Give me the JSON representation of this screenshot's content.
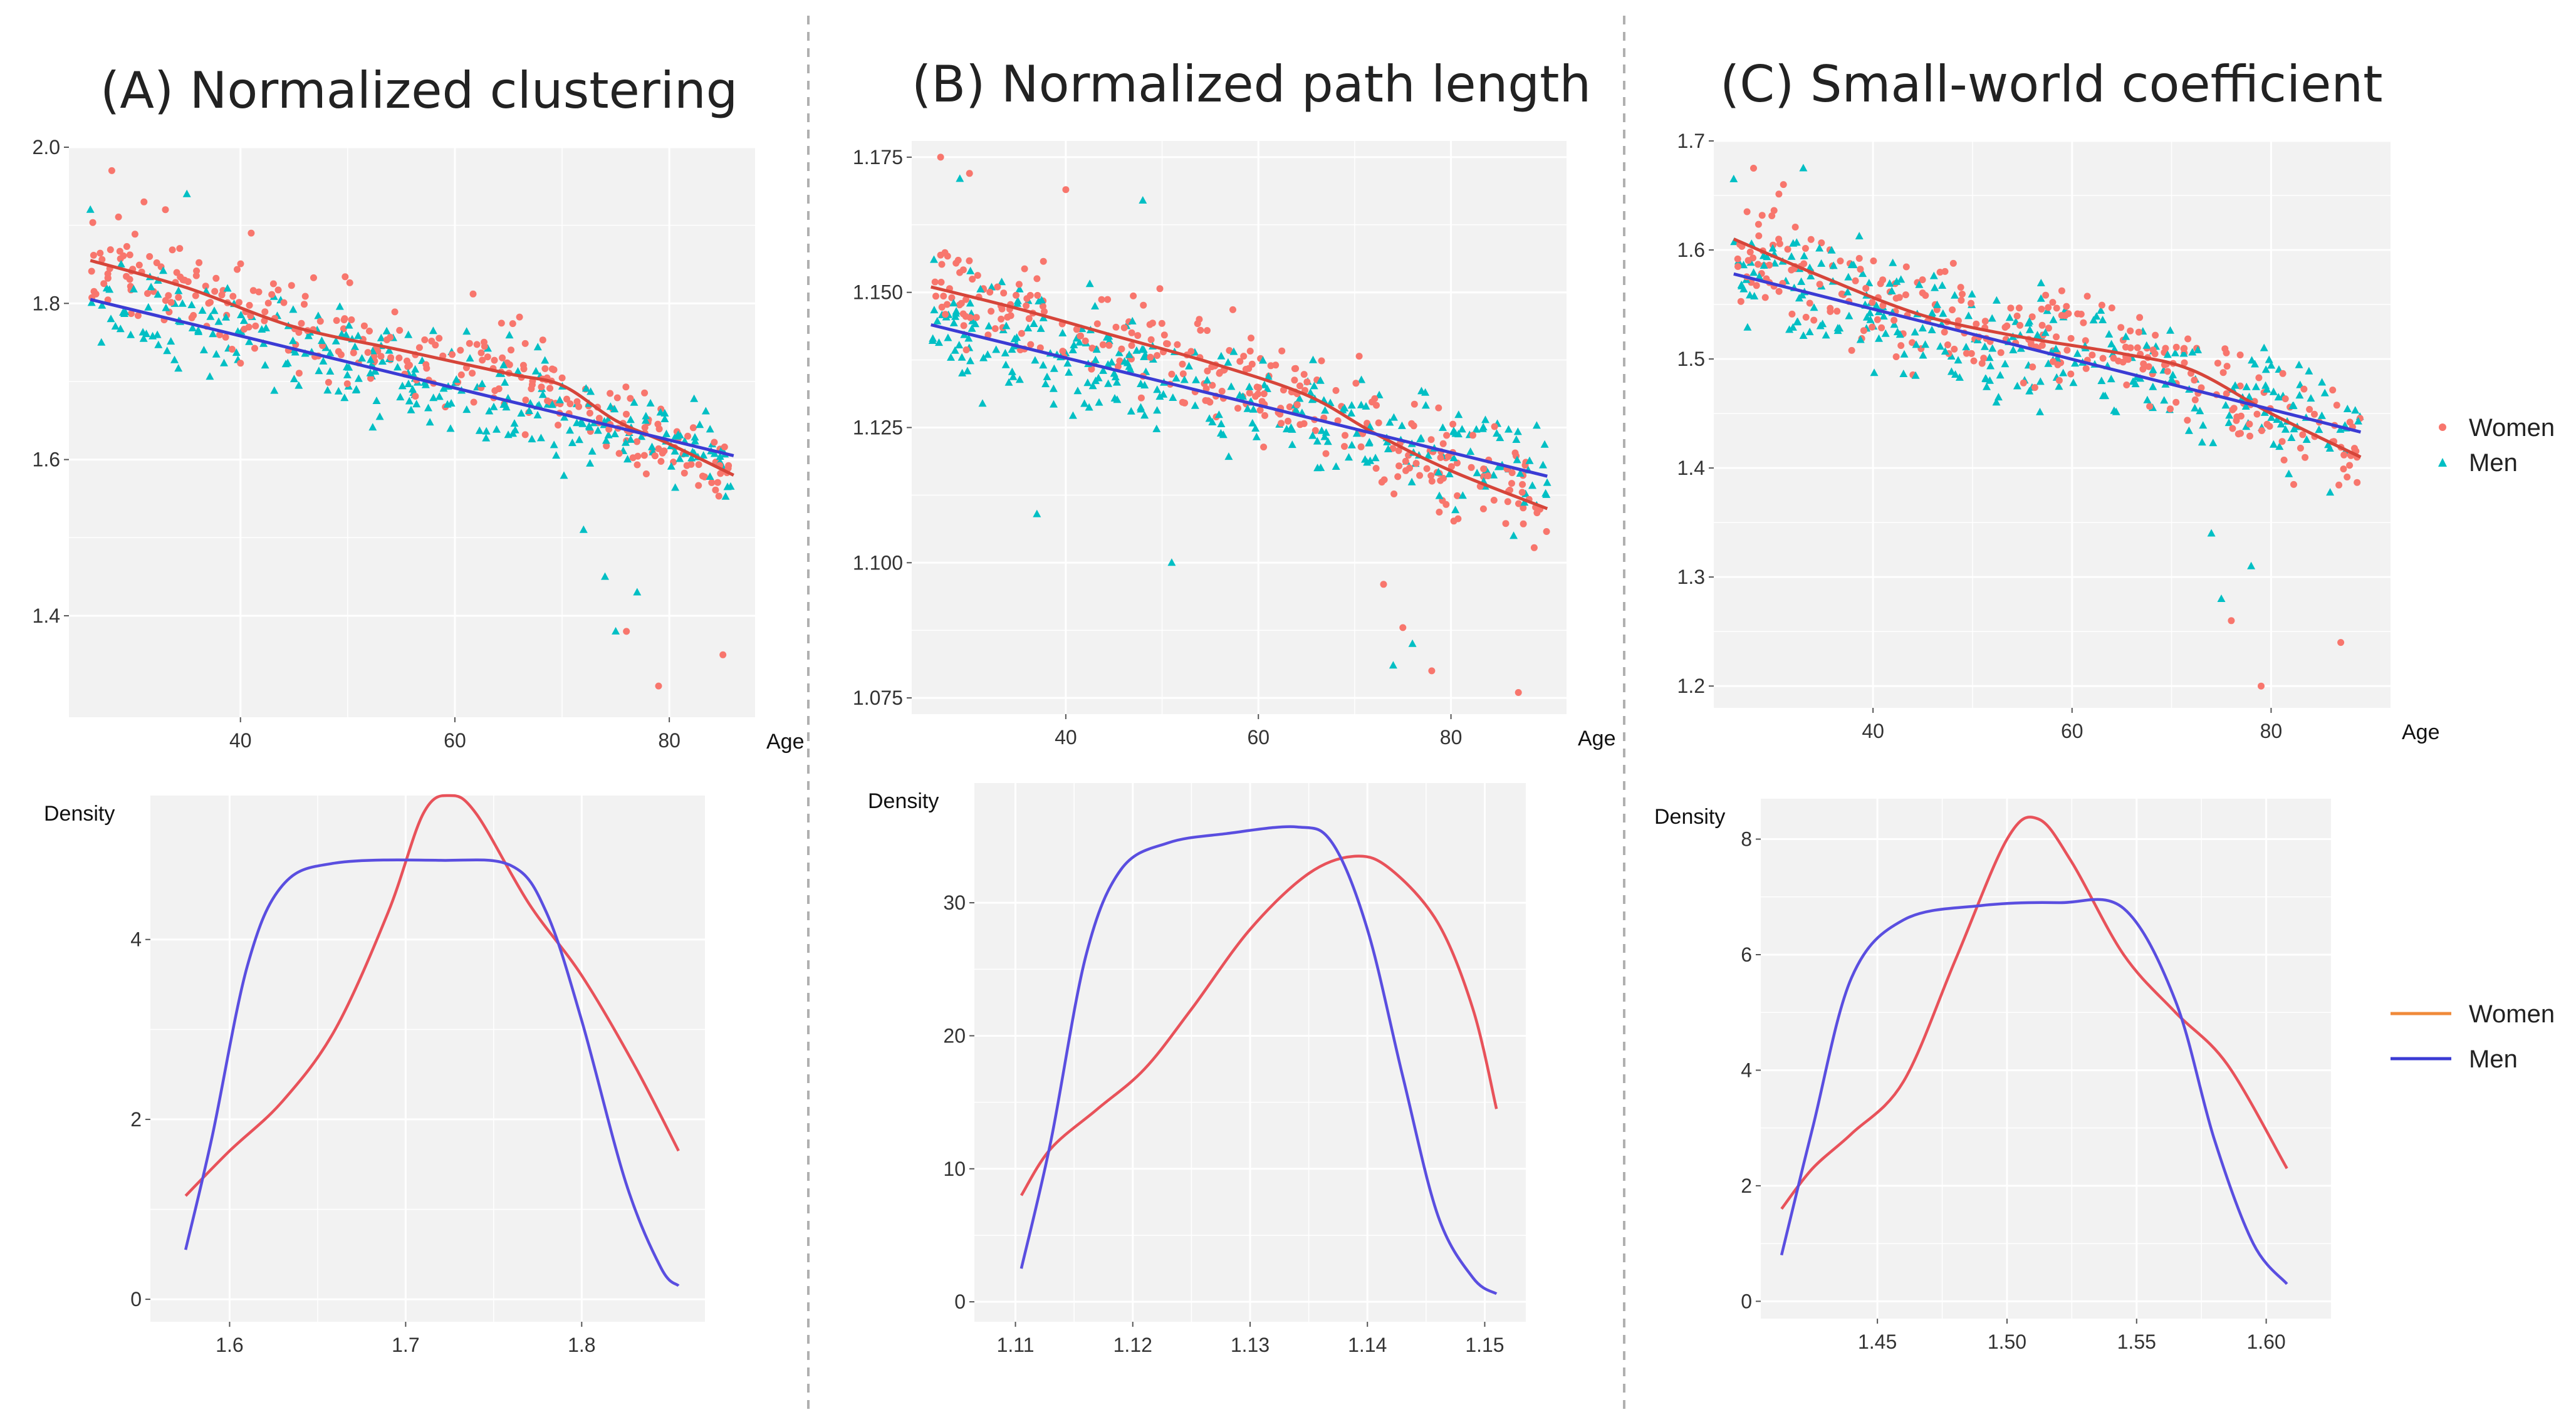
{
  "figure": {
    "separator_color": "#b0b0b0",
    "panel_background": "#f2f2f2",
    "grid_color": "#ffffff"
  },
  "colors": {
    "women_points": "#f8766d",
    "men_points": "#00bfc4",
    "women_fit": "#d6453a",
    "men_fit": "#3b3bd4",
    "women_density": "#e8525a",
    "men_density": "#5a4ee0",
    "women_legend_line": "#f08a3a"
  },
  "scatter_legend": {
    "items": [
      {
        "label": "Women",
        "shape": "circle"
      },
      {
        "label": "Men",
        "shape": "triangle"
      }
    ]
  },
  "density_legend": {
    "items": [
      {
        "label": "Women"
      },
      {
        "label": "Men"
      }
    ]
  },
  "chart_data": [
    {
      "id": "A",
      "type": "scatter",
      "title": "(A) Normalized clustering",
      "xlabel": "Age",
      "ylabel": "",
      "xlim": [
        24,
        88
      ],
      "ylim": [
        1.27,
        2.0
      ],
      "xticks": [
        40,
        60,
        80
      ],
      "yticks": [
        1.4,
        1.6,
        1.8,
        2.0
      ],
      "xtick_labels": [
        "40",
        "60",
        "80"
      ],
      "ytick_labels": [
        "1.4",
        "1.6",
        "1.8",
        "2.0"
      ],
      "points": {
        "n_per_group": 290,
        "seed": 11,
        "age_range": [
          26,
          86
        ],
        "women_sd": 0.055,
        "men_sd": 0.055,
        "women_outliers": [
          [
            28,
            1.97
          ],
          [
            31,
            1.93
          ],
          [
            33,
            1.92
          ],
          [
            41,
            1.89
          ],
          [
            76,
            1.38
          ],
          [
            79,
            1.31
          ],
          [
            85,
            1.35
          ]
        ],
        "men_outliers": [
          [
            26,
            1.92
          ],
          [
            35,
            1.94
          ],
          [
            72,
            1.51
          ],
          [
            74,
            1.45
          ],
          [
            75,
            1.38
          ],
          [
            77,
            1.43
          ]
        ]
      },
      "fits": {
        "women": [
          [
            26,
            1.855
          ],
          [
            35,
            1.82
          ],
          [
            45,
            1.77
          ],
          [
            55,
            1.74
          ],
          [
            65,
            1.71
          ],
          [
            70,
            1.695
          ],
          [
            75,
            1.65
          ],
          [
            80,
            1.62
          ],
          [
            86,
            1.58
          ]
        ],
        "men": [
          [
            26,
            1.805
          ],
          [
            86,
            1.605
          ]
        ]
      }
    },
    {
      "id": "B",
      "type": "scatter",
      "title": "(B) Normalized path length",
      "xlabel": "Age",
      "ylabel": "",
      "xlim": [
        24,
        92
      ],
      "ylim": [
        1.072,
        1.178
      ],
      "xticks": [
        40,
        60,
        80
      ],
      "yticks": [
        1.075,
        1.1,
        1.125,
        1.15,
        1.175
      ],
      "xtick_labels": [
        "40",
        "60",
        "80"
      ],
      "ytick_labels": [
        "1.075",
        "1.100",
        "1.125",
        "1.150",
        "1.175"
      ],
      "points": {
        "n_per_group": 290,
        "seed": 23,
        "age_range": [
          26,
          90
        ],
        "women_sd": 0.0085,
        "men_sd": 0.0085,
        "women_outliers": [
          [
            27,
            1.175
          ],
          [
            30,
            1.172
          ],
          [
            40,
            1.169
          ],
          [
            73,
            1.096
          ],
          [
            75,
            1.088
          ],
          [
            78,
            1.08
          ],
          [
            87,
            1.076
          ]
        ],
        "men_outliers": [
          [
            29,
            1.171
          ],
          [
            37,
            1.109
          ],
          [
            48,
            1.167
          ],
          [
            51,
            1.1
          ],
          [
            74,
            1.081
          ],
          [
            76,
            1.085
          ]
        ]
      },
      "fits": {
        "women": [
          [
            26,
            1.151
          ],
          [
            35,
            1.147
          ],
          [
            45,
            1.142
          ],
          [
            55,
            1.137
          ],
          [
            65,
            1.131
          ],
          [
            72,
            1.124
          ],
          [
            80,
            1.117
          ],
          [
            90,
            1.11
          ]
        ],
        "men": [
          [
            26,
            1.144
          ],
          [
            90,
            1.116
          ]
        ]
      }
    },
    {
      "id": "C",
      "type": "scatter",
      "title": "(C) Small-world coefficient",
      "xlabel": "Age",
      "ylabel": "",
      "xlim": [
        24,
        92
      ],
      "ylim": [
        1.18,
        1.7
      ],
      "xticks": [
        40,
        60,
        80
      ],
      "yticks": [
        1.2,
        1.3,
        1.4,
        1.5,
        1.6,
        1.7
      ],
      "xtick_labels": [
        "40",
        "60",
        "80"
      ],
      "ytick_labels": [
        "1.2",
        "1.3",
        "1.4",
        "1.5",
        "1.6",
        "1.7"
      ],
      "points": {
        "n_per_group": 290,
        "seed": 37,
        "age_range": [
          26,
          89
        ],
        "women_sd": 0.045,
        "men_sd": 0.045,
        "women_outliers": [
          [
            28,
            1.675
          ],
          [
            31,
            1.66
          ],
          [
            76,
            1.26
          ],
          [
            79,
            1.2
          ],
          [
            87,
            1.24
          ]
        ],
        "men_outliers": [
          [
            26,
            1.665
          ],
          [
            33,
            1.675
          ],
          [
            74,
            1.34
          ],
          [
            75,
            1.28
          ],
          [
            78,
            1.31
          ]
        ]
      },
      "fits": {
        "women": [
          [
            26,
            1.61
          ],
          [
            35,
            1.575
          ],
          [
            45,
            1.54
          ],
          [
            55,
            1.52
          ],
          [
            65,
            1.505
          ],
          [
            72,
            1.49
          ],
          [
            80,
            1.45
          ],
          [
            89,
            1.41
          ]
        ],
        "men": [
          [
            26,
            1.578
          ],
          [
            89,
            1.433
          ]
        ]
      }
    },
    {
      "id": "A-density",
      "type": "line",
      "title": "",
      "xlabel": "",
      "ylabel": "Density",
      "xlim": [
        1.555,
        1.87
      ],
      "ylim": [
        -0.25,
        5.6
      ],
      "xticks": [
        1.6,
        1.7,
        1.8
      ],
      "yticks": [
        0,
        2,
        4
      ],
      "xtick_labels": [
        "1.6",
        "1.7",
        "1.8"
      ],
      "ytick_labels": [
        "0",
        "2",
        "4"
      ],
      "series": [
        {
          "name": "Women",
          "points": [
            [
              1.575,
              1.15
            ],
            [
              1.6,
              1.65
            ],
            [
              1.63,
              2.2
            ],
            [
              1.66,
              3.0
            ],
            [
              1.69,
              4.3
            ],
            [
              1.71,
              5.4
            ],
            [
              1.725,
              5.6
            ],
            [
              1.74,
              5.4
            ],
            [
              1.77,
              4.4
            ],
            [
              1.8,
              3.6
            ],
            [
              1.83,
              2.6
            ],
            [
              1.855,
              1.65
            ]
          ]
        },
        {
          "name": "Men",
          "points": [
            [
              1.575,
              0.55
            ],
            [
              1.59,
              1.8
            ],
            [
              1.61,
              3.7
            ],
            [
              1.63,
              4.6
            ],
            [
              1.66,
              4.85
            ],
            [
              1.72,
              4.88
            ],
            [
              1.76,
              4.82
            ],
            [
              1.78,
              4.3
            ],
            [
              1.8,
              3.1
            ],
            [
              1.825,
              1.3
            ],
            [
              1.845,
              0.35
            ],
            [
              1.855,
              0.15
            ]
          ]
        }
      ]
    },
    {
      "id": "B-density",
      "type": "line",
      "title": "",
      "xlabel": "",
      "ylabel": "Density",
      "xlim": [
        1.1065,
        1.1535
      ],
      "ylim": [
        -1.5,
        39
      ],
      "xticks": [
        1.11,
        1.12,
        1.13,
        1.14,
        1.15
      ],
      "yticks": [
        0,
        10,
        20,
        30
      ],
      "xtick_labels": [
        "1.11",
        "1.12",
        "1.13",
        "1.14",
        "1.15"
      ],
      "ytick_labels": [
        "0",
        "10",
        "20",
        "30"
      ],
      "series": [
        {
          "name": "Women",
          "points": [
            [
              1.1105,
              8
            ],
            [
              1.113,
              11.5
            ],
            [
              1.117,
              14.5
            ],
            [
              1.121,
              17.5
            ],
            [
              1.125,
              22
            ],
            [
              1.13,
              28
            ],
            [
              1.135,
              32.2
            ],
            [
              1.139,
              33.5
            ],
            [
              1.142,
              32.5
            ],
            [
              1.146,
              28.5
            ],
            [
              1.149,
              22
            ],
            [
              1.151,
              14.5
            ]
          ]
        },
        {
          "name": "Men",
          "points": [
            [
              1.1105,
              2.5
            ],
            [
              1.113,
              12
            ],
            [
              1.116,
              26
            ],
            [
              1.119,
              32.5
            ],
            [
              1.123,
              34.5
            ],
            [
              1.128,
              35.2
            ],
            [
              1.134,
              35.7
            ],
            [
              1.137,
              34.5
            ],
            [
              1.14,
              28
            ],
            [
              1.143,
              17
            ],
            [
              1.146,
              6.5
            ],
            [
              1.149,
              1.8
            ],
            [
              1.151,
              0.6
            ]
          ]
        }
      ]
    },
    {
      "id": "C-density",
      "type": "line",
      "title": "",
      "xlabel": "",
      "ylabel": "Density",
      "xlim": [
        1.405,
        1.625
      ],
      "ylim": [
        -0.3,
        8.7
      ],
      "xticks": [
        1.45,
        1.5,
        1.55,
        1.6
      ],
      "yticks": [
        0,
        2,
        4,
        6,
        8
      ],
      "xtick_labels": [
        "1.45",
        "1.50",
        "1.55",
        "1.60"
      ],
      "ytick_labels": [
        "0",
        "2",
        "4",
        "6",
        "8"
      ],
      "series": [
        {
          "name": "Women",
          "points": [
            [
              1.413,
              1.6
            ],
            [
              1.425,
              2.3
            ],
            [
              1.44,
              2.9
            ],
            [
              1.46,
              3.8
            ],
            [
              1.48,
              5.9
            ],
            [
              1.5,
              8.0
            ],
            [
              1.512,
              8.35
            ],
            [
              1.525,
              7.6
            ],
            [
              1.545,
              6.0
            ],
            [
              1.565,
              5.0
            ],
            [
              1.585,
              4.1
            ],
            [
              1.608,
              2.3
            ]
          ]
        },
        {
          "name": "Men",
          "points": [
            [
              1.413,
              0.8
            ],
            [
              1.425,
              3.0
            ],
            [
              1.44,
              5.6
            ],
            [
              1.46,
              6.6
            ],
            [
              1.49,
              6.85
            ],
            [
              1.52,
              6.9
            ],
            [
              1.545,
              6.8
            ],
            [
              1.565,
              5.2
            ],
            [
              1.58,
              2.8
            ],
            [
              1.595,
              1.0
            ],
            [
              1.608,
              0.3
            ]
          ]
        }
      ]
    }
  ]
}
